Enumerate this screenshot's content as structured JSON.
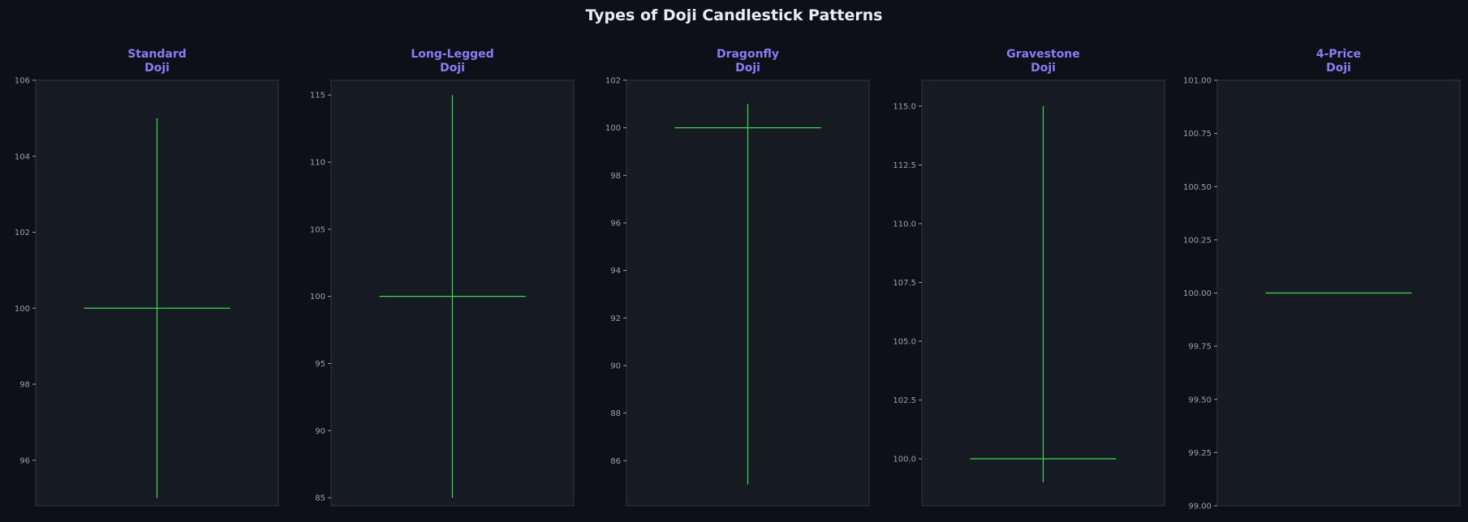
{
  "title": "Types of Doji Candlestick Patterns",
  "colors": {
    "background": "#0d1117",
    "panel": "#161b22",
    "panel_border": "#30363d",
    "candle": "#3fd65a",
    "subtitle": "#8b7cf6",
    "tick_text": "#9aa0a6"
  },
  "chart_data": [
    {
      "type": "candlestick",
      "title": [
        "Standard",
        "Doji"
      ],
      "candle": {
        "open": 100,
        "high": 105,
        "low": 95,
        "close": 100
      },
      "ylim": [
        94.8,
        106
      ],
      "yticks": [
        "96",
        "98",
        "100",
        "102",
        "104",
        "106"
      ],
      "ytick_values": [
        96,
        98,
        100,
        102,
        104,
        106
      ],
      "grid": false
    },
    {
      "type": "candlestick",
      "title": [
        "Long-Legged",
        "Doji"
      ],
      "candle": {
        "open": 100,
        "high": 115,
        "low": 85,
        "close": 100
      },
      "ylim": [
        84.4,
        116.1
      ],
      "yticks": [
        "85",
        "90",
        "95",
        "100",
        "105",
        "110",
        "115"
      ],
      "ytick_values": [
        85,
        90,
        95,
        100,
        105,
        110,
        115
      ],
      "grid": false
    },
    {
      "type": "candlestick",
      "title": [
        "Dragonfly",
        "Doji"
      ],
      "candle": {
        "open": 100,
        "high": 101,
        "low": 85,
        "close": 100
      },
      "ylim": [
        84.1,
        102
      ],
      "yticks": [
        "86",
        "88",
        "90",
        "92",
        "94",
        "96",
        "98",
        "100",
        "102"
      ],
      "ytick_values": [
        86,
        88,
        90,
        92,
        94,
        96,
        98,
        100,
        102
      ],
      "grid": false
    },
    {
      "type": "candlestick",
      "title": [
        "Gravestone",
        "Doji"
      ],
      "candle": {
        "open": 100,
        "high": 115,
        "low": 99,
        "close": 100
      },
      "ylim": [
        98,
        116.1
      ],
      "yticks": [
        "100.0",
        "102.5",
        "105.0",
        "107.5",
        "110.0",
        "112.5",
        "115.0"
      ],
      "ytick_values": [
        100,
        102.5,
        105,
        107.5,
        110,
        112.5,
        115
      ],
      "grid": false
    },
    {
      "type": "candlestick",
      "title": [
        "4-Price",
        "Doji"
      ],
      "candle": {
        "open": 100,
        "high": 100,
        "low": 100,
        "close": 100
      },
      "ylim": [
        99,
        101
      ],
      "yticks": [
        "99.00",
        "99.25",
        "99.50",
        "99.75",
        "100.00",
        "100.25",
        "100.50",
        "100.75",
        "101.00"
      ],
      "ytick_values": [
        99,
        99.25,
        99.5,
        99.75,
        100,
        100.25,
        100.5,
        100.75,
        101
      ],
      "grid": false
    }
  ]
}
